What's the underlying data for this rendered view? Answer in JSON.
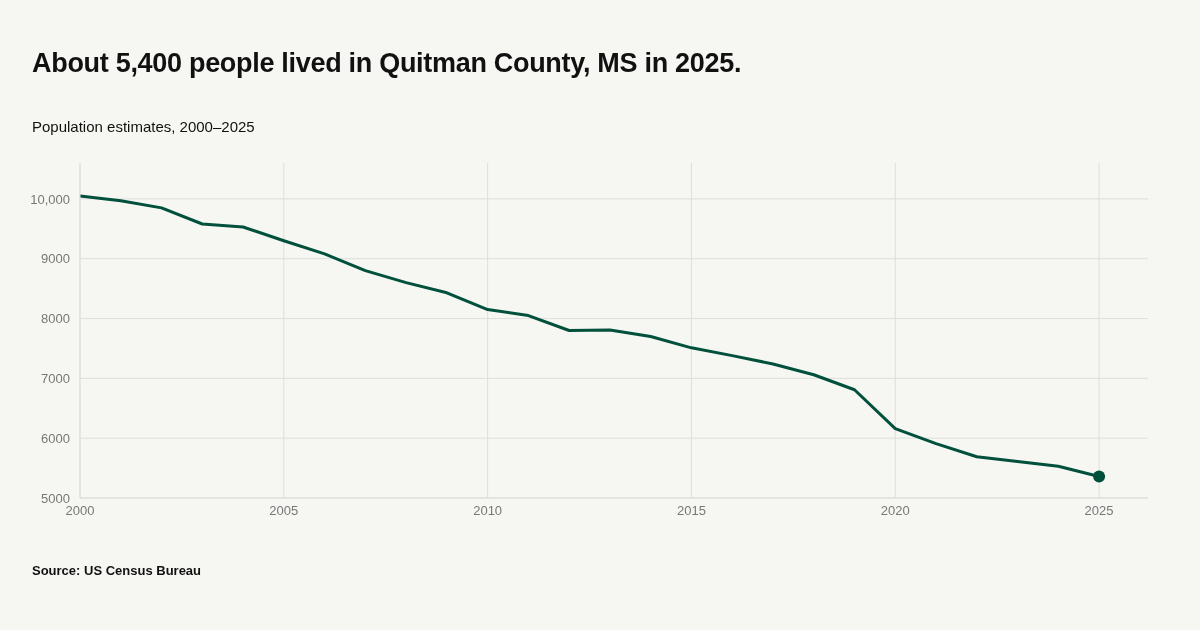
{
  "chart_data": {
    "type": "line",
    "title": "About 5,400 people lived in Quitman County, MS in 2025.",
    "subtitle": "Population estimates, 2000–2025",
    "annotations": [
      "Source: US Census Bureau"
    ],
    "x": [
      2000,
      2001,
      2002,
      2003,
      2004,
      2005,
      2006,
      2007,
      2008,
      2009,
      2010,
      2011,
      2012,
      2013,
      2014,
      2015,
      2016,
      2017,
      2018,
      2019,
      2020,
      2021,
      2022,
      2023,
      2024,
      2025
    ],
    "series": [
      {
        "color": "#00503c",
        "values": [
          10050,
          9970,
          9850,
          9580,
          9530,
          9300,
          9080,
          8800,
          8600,
          8430,
          8150,
          8050,
          7800,
          7810,
          7700,
          7510,
          7380,
          7240,
          7060,
          6810,
          6160,
          5910,
          5690,
          5610,
          5530,
          5360
        ]
      },
      {
        "type": "scatter",
        "marker": "circle",
        "color": "#00503c",
        "x": [
          2025
        ],
        "values": [
          5360
        ]
      }
    ],
    "xlim": [
      2000,
      2026.2
    ],
    "xticks": [
      2000,
      2005,
      2010,
      2015,
      2020,
      2025
    ],
    "ylim": [
      5000,
      10600
    ],
    "yticks": [
      5000,
      6000,
      7000,
      8000,
      9000,
      {
        "value": 10000,
        "label": "10,000"
      }
    ],
    "grid": true,
    "legend": false,
    "line_style": "solid"
  }
}
